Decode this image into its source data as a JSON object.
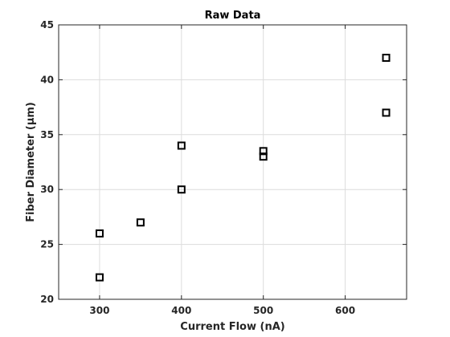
{
  "chart_data": {
    "type": "scatter",
    "title": "Raw Data",
    "xlabel": "Current Flow (nA)",
    "ylabel": "Fiber Diameter (μm)",
    "xlim": [
      250,
      675
    ],
    "ylim": [
      20,
      45
    ],
    "xticks": [
      300,
      400,
      500,
      600
    ],
    "yticks": [
      20,
      25,
      30,
      35,
      40,
      45
    ],
    "grid": true,
    "marker": "square",
    "series": [
      {
        "points": [
          {
            "x": 300,
            "y": 26
          },
          {
            "x": 300,
            "y": 22
          },
          {
            "x": 350,
            "y": 27
          },
          {
            "x": 400,
            "y": 34
          },
          {
            "x": 400,
            "y": 30
          },
          {
            "x": 500,
            "y": 33.5
          },
          {
            "x": 500,
            "y": 33
          },
          {
            "x": 650,
            "y": 42
          },
          {
            "x": 650,
            "y": 37
          }
        ]
      }
    ]
  }
}
